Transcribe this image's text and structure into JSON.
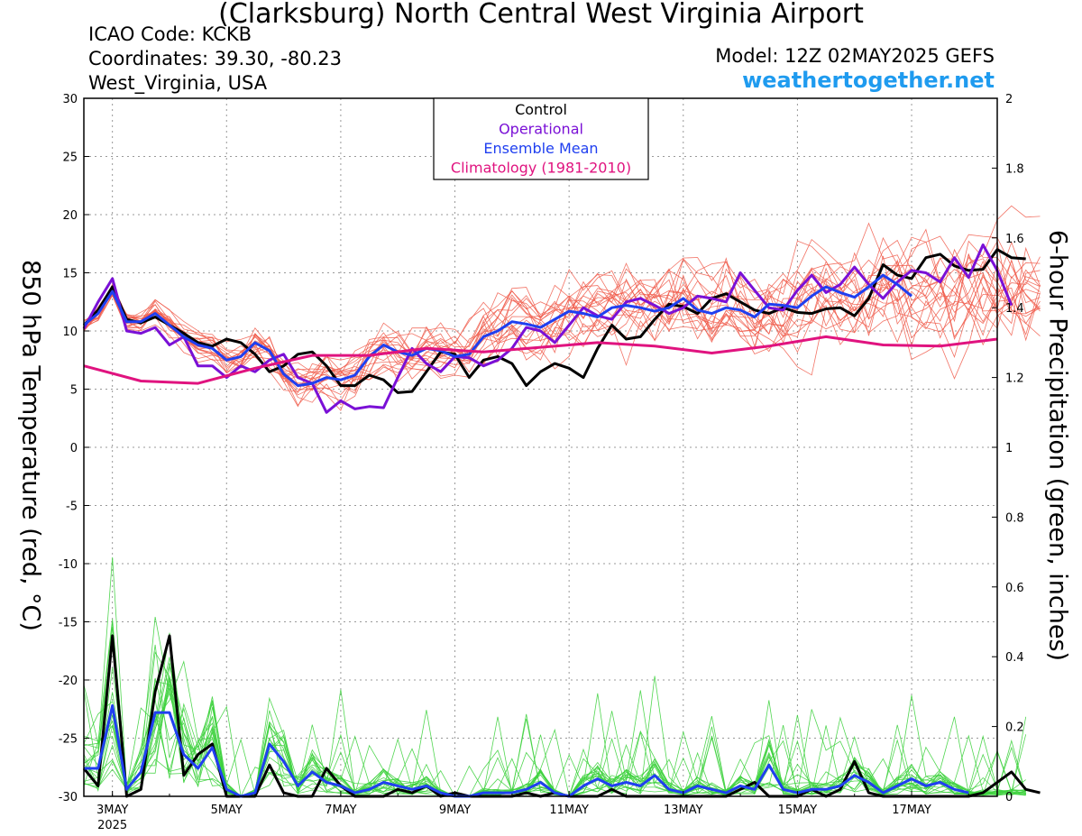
{
  "header": {
    "title": "(Clarksburg) North Central West Virginia Airport",
    "icao": "ICAO Code: KCKB",
    "coordinates": "Coordinates: 39.30, -80.23",
    "location": "West_Virginia, USA",
    "model": "Model: 12Z 02MAY2025 GEFS",
    "site": "weathertogether.net"
  },
  "colors": {
    "member_temp": "#f05a4a",
    "member_precip": "#3ed23e",
    "control": "#000000",
    "operational": "#7a10d6",
    "mean": "#1f3ff0",
    "climatology": "#e0137f"
  },
  "chart_data": {
    "type": "line",
    "xlabel": "",
    "ylabel": "850 hPa Temperature (red, °C)",
    "ylabel_right": "6-hour Precipitation (green, inches)",
    "ylim": [
      -30,
      30
    ],
    "ylim_right": [
      0,
      2
    ],
    "yticks": [
      "30",
      "25",
      "20",
      "15",
      "10",
      "5",
      "0",
      "-5",
      "-10",
      "-15",
      "-20",
      "-25",
      "-30"
    ],
    "yticks_right": [
      "2",
      "1.8",
      "1.6",
      "1.4",
      "1.2",
      "1",
      "0.8",
      "0.6",
      "0.4",
      "0.2",
      "0"
    ],
    "xticks": [
      {
        "label": "3MAY",
        "sub": "2025",
        "day": 3
      },
      {
        "label": "5MAY",
        "day": 5
      },
      {
        "label": "7MAY",
        "day": 7
      },
      {
        "label": "9MAY",
        "day": 9
      },
      {
        "label": "11MAY",
        "day": 11
      },
      {
        "label": "13MAY",
        "day": 13
      },
      {
        "label": "15MAY",
        "day": 15
      },
      {
        "label": "17MAY",
        "day": 17
      }
    ],
    "xlim_day": [
      2.5,
      18.5
    ],
    "grid": true,
    "legend_position": "top-center",
    "legend": [
      "Control",
      "Operational",
      "Ensemble Mean",
      "Climatology (1981-2010)"
    ],
    "start_day": 2.5,
    "step_days": 0.25,
    "series": [
      {
        "name": "Control",
        "axis": "temp",
        "values": [
          10.5,
          11.8,
          13.8,
          11.0,
          10.7,
          11.2,
          10.5,
          9.8,
          9.0,
          8.7,
          9.3,
          9.0,
          8.0,
          6.5,
          7.0,
          8.0,
          8.2,
          7.0,
          5.3,
          5.3,
          6.2,
          5.8,
          4.7,
          4.8,
          6.5,
          8.2,
          8.0,
          6.0,
          7.5,
          7.8,
          7.2,
          5.3,
          6.5,
          7.2,
          6.8,
          6.0,
          8.5,
          10.5,
          9.3,
          9.5,
          11.0,
          12.3,
          12.1,
          11.5,
          12.8,
          13.2,
          12.5,
          11.8,
          11.5,
          12.0,
          11.6,
          11.5,
          11.9,
          12.0,
          11.3,
          12.8,
          15.7,
          14.8,
          14.5,
          16.3,
          16.6,
          15.6,
          15.2,
          15.3,
          17.0,
          16.3,
          16.2
        ]
      },
      {
        "name": "Operational",
        "axis": "temp",
        "values": [
          10.2,
          12.5,
          14.5,
          10.0,
          9.8,
          10.3,
          8.8,
          9.5,
          7.0,
          7.0,
          6.0,
          7.0,
          6.5,
          7.5,
          8.0,
          6.0,
          5.5,
          3.0,
          4.0,
          3.3,
          3.5,
          3.4,
          6.0,
          8.5,
          7.2,
          6.5,
          7.8,
          7.7,
          7.0,
          7.5,
          8.5,
          10.3,
          10.0,
          9.0,
          10.5,
          12.0,
          11.3,
          11.0,
          12.5,
          12.8,
          12.2,
          11.5,
          12.0,
          13.0,
          12.8,
          12.5,
          15.0,
          13.5,
          12.0,
          11.8,
          13.5,
          14.8,
          13.3,
          14.0,
          15.5,
          14.0,
          12.8,
          14.2,
          15.2,
          15.0,
          14.2,
          16.3,
          14.6,
          17.4,
          15.2,
          12.2
        ]
      },
      {
        "name": "Ensemble Mean",
        "axis": "temp",
        "values": [
          10.5,
          11.5,
          13.4,
          10.8,
          10.8,
          11.5,
          10.5,
          9.5,
          8.8,
          8.5,
          7.5,
          7.8,
          9.0,
          8.3,
          6.3,
          5.3,
          5.5,
          6.0,
          5.8,
          6.2,
          7.8,
          8.8,
          8.2,
          7.9,
          8.5,
          8.3,
          7.8,
          8.0,
          9.5,
          10.0,
          10.8,
          10.6,
          10.3,
          11.0,
          11.7,
          11.5,
          11.2,
          12.0,
          12.2,
          12.0,
          11.7,
          12.0,
          12.8,
          11.8,
          11.5,
          12.0,
          11.8,
          11.2,
          12.3,
          12.2,
          12.0,
          13.0,
          13.8,
          13.3,
          12.9,
          13.8,
          14.8,
          14.0,
          13.0
        ]
      },
      {
        "name": "Climatology (1981-2010)",
        "axis": "temp",
        "x": [
          2.5,
          3.5,
          4.5,
          5.5,
          6.5,
          7.5,
          8.5,
          9.5,
          10.5,
          11.5,
          12.5,
          13.5,
          14.5,
          15.5,
          16.5,
          17.5,
          18.5
        ],
        "values": [
          7.0,
          5.7,
          5.5,
          6.8,
          7.9,
          7.9,
          8.5,
          8.2,
          8.6,
          9.0,
          8.7,
          8.1,
          8.7,
          9.5,
          8.8,
          8.7,
          9.3
        ]
      },
      {
        "name": "Control",
        "axis": "precip",
        "values": [
          0.08,
          0.03,
          0.46,
          0.0,
          0.02,
          0.3,
          0.46,
          0.06,
          0.12,
          0.15,
          0.0,
          0.0,
          0.0,
          0.09,
          0.01,
          0.0,
          0.0,
          0.08,
          0.03,
          0.0,
          0.0,
          0.0,
          0.02,
          0.01,
          0.03,
          0.0,
          0.01,
          0.0,
          0.0,
          0.0,
          0.0,
          0.01,
          0.0,
          0.01,
          0.0,
          0.0,
          0.0,
          0.02,
          0.0,
          0.0,
          0.0,
          0.0,
          0.0,
          0.0,
          0.0,
          0.0,
          0.02,
          0.04,
          0.0,
          0.0,
          0.0,
          0.02,
          0.0,
          0.02,
          0.1,
          0.01,
          0.0,
          0.0,
          0.0,
          0.0,
          0.0,
          0.0,
          0.0,
          0.01,
          0.04,
          0.07,
          0.02,
          0.01
        ]
      },
      {
        "name": "Ensemble Mean",
        "axis": "precip",
        "values": [
          0.08,
          0.08,
          0.26,
          0.02,
          0.07,
          0.24,
          0.24,
          0.12,
          0.08,
          0.14,
          0.02,
          0.0,
          0.01,
          0.15,
          0.1,
          0.03,
          0.07,
          0.04,
          0.03,
          0.01,
          0.02,
          0.04,
          0.03,
          0.02,
          0.03,
          0.01,
          0.0,
          0.0,
          0.01,
          0.01,
          0.01,
          0.02,
          0.04,
          0.01,
          0.0,
          0.03,
          0.05,
          0.03,
          0.04,
          0.03,
          0.06,
          0.02,
          0.01,
          0.03,
          0.02,
          0.01,
          0.03,
          0.02,
          0.09,
          0.02,
          0.01,
          0.02,
          0.02,
          0.03,
          0.06,
          0.04,
          0.01,
          0.03,
          0.05,
          0.03,
          0.04,
          0.02,
          0.01
        ]
      }
    ]
  }
}
